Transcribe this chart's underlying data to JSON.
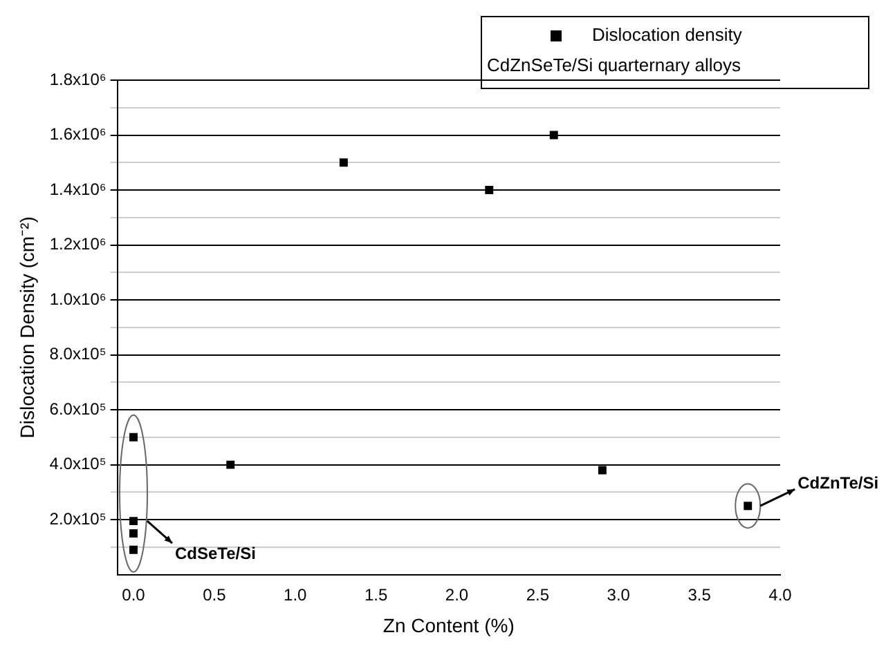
{
  "chart_data": {
    "type": "scatter",
    "xlabel": "Zn Content (%)",
    "ylabel": "Dislocation Density (cm⁻²)",
    "legend": "top right",
    "legend_title": "CdZnSeTe/Si quarternary alloys",
    "marker": "square",
    "grid": "y",
    "xlim": [
      -0.1,
      4.0
    ],
    "xticks": [
      {
        "value": 0,
        "label": "0.0"
      },
      0.5,
      {
        "value": 1,
        "label": "1.0"
      },
      1.5,
      {
        "value": 2,
        "label": "2.0"
      },
      2.5,
      {
        "value": 3,
        "label": "3.0"
      },
      3.5,
      {
        "value": 4,
        "label": "4.0"
      }
    ],
    "ylim": [
      0,
      1800000
    ],
    "yticks": [
      {
        "value": 100000,
        "label": null
      },
      {
        "value": 200000,
        "label": "2.0x10⁵"
      },
      {
        "value": 300000,
        "label": null
      },
      {
        "value": 400000,
        "label": "4.0x10⁵"
      },
      {
        "value": 500000,
        "label": null
      },
      {
        "value": 600000,
        "label": "6.0x10⁵"
      },
      {
        "value": 700000,
        "label": null
      },
      {
        "value": 800000,
        "label": "8.0x10⁵"
      },
      {
        "value": 900000,
        "label": null
      },
      {
        "value": 1000000,
        "label": "1.0x10⁶"
      },
      {
        "value": 1100000,
        "label": null
      },
      {
        "value": 1200000,
        "label": "1.2x10⁶"
      },
      {
        "value": 1300000,
        "label": null
      },
      {
        "value": 1400000,
        "label": "1.4x10⁶"
      },
      {
        "value": 1500000,
        "label": null
      },
      {
        "value": 1600000,
        "label": "1.6x10⁶"
      },
      {
        "value": 1700000,
        "label": null
      },
      {
        "value": 1800000,
        "label": "1.8x10⁶"
      }
    ],
    "series": [
      {
        "name": "Dislocation density",
        "color": "#000000",
        "x": [
          0,
          0,
          0,
          0,
          0.6,
          1.3,
          2.2,
          2.6,
          2.9,
          3.8
        ],
        "values": [
          500000,
          195000,
          150000,
          90000,
          400000,
          1500000,
          1400000,
          1600000,
          380000,
          250000
        ]
      }
    ],
    "annotations": [
      {
        "text": "CdSeTe/Si",
        "x": 0,
        "y": 195000
      },
      {
        "text": "CdZnTe/Si",
        "x": 3.8,
        "y": 250000
      }
    ]
  }
}
